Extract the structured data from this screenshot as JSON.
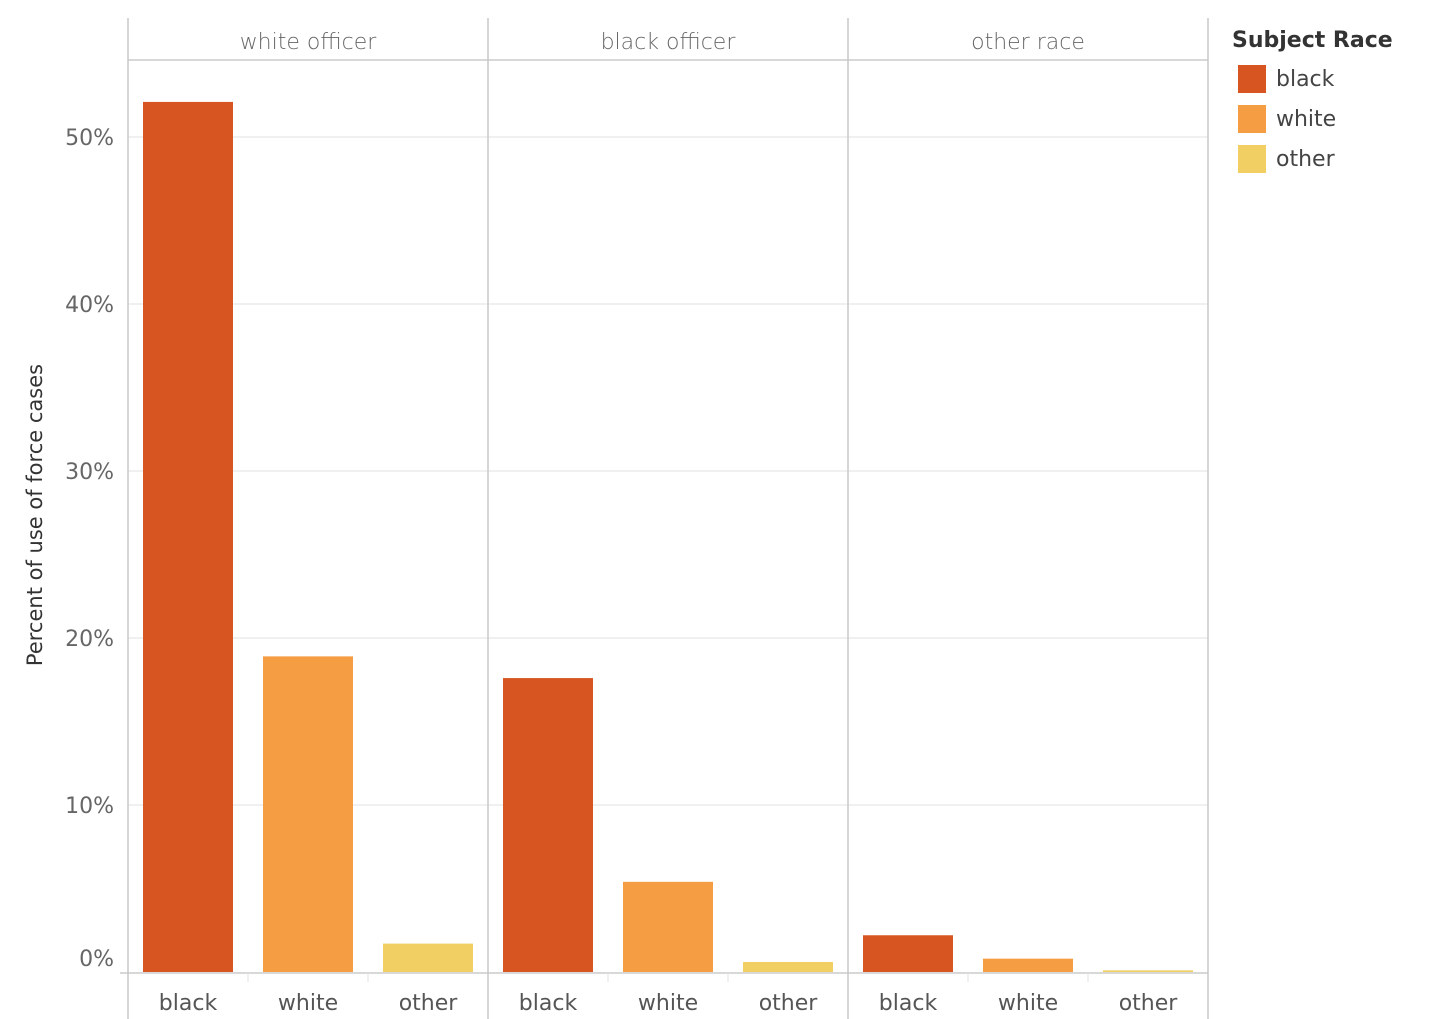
{
  "chart_data": {
    "type": "bar",
    "ylabel": "Percent of use of force cases",
    "ylim": [
      0,
      55
    ],
    "yticks": [
      "0%",
      "10%",
      "20%",
      "30%",
      "40%",
      "50%"
    ],
    "grid": true,
    "categories": [
      "black",
      "white",
      "other"
    ],
    "panels": [
      {
        "title": "white officer",
        "values": [
          52.1,
          18.9,
          1.7
        ]
      },
      {
        "title": "black officer",
        "values": [
          17.6,
          5.4,
          0.6
        ]
      },
      {
        "title": "other race",
        "values": [
          2.2,
          0.8,
          0.1
        ]
      }
    ],
    "colors": [
      "#d75521",
      "#f59d42",
      "#f2cf63"
    ],
    "legend": {
      "title": "Subject Race",
      "position": "right",
      "items": [
        "black",
        "white",
        "other"
      ]
    }
  }
}
